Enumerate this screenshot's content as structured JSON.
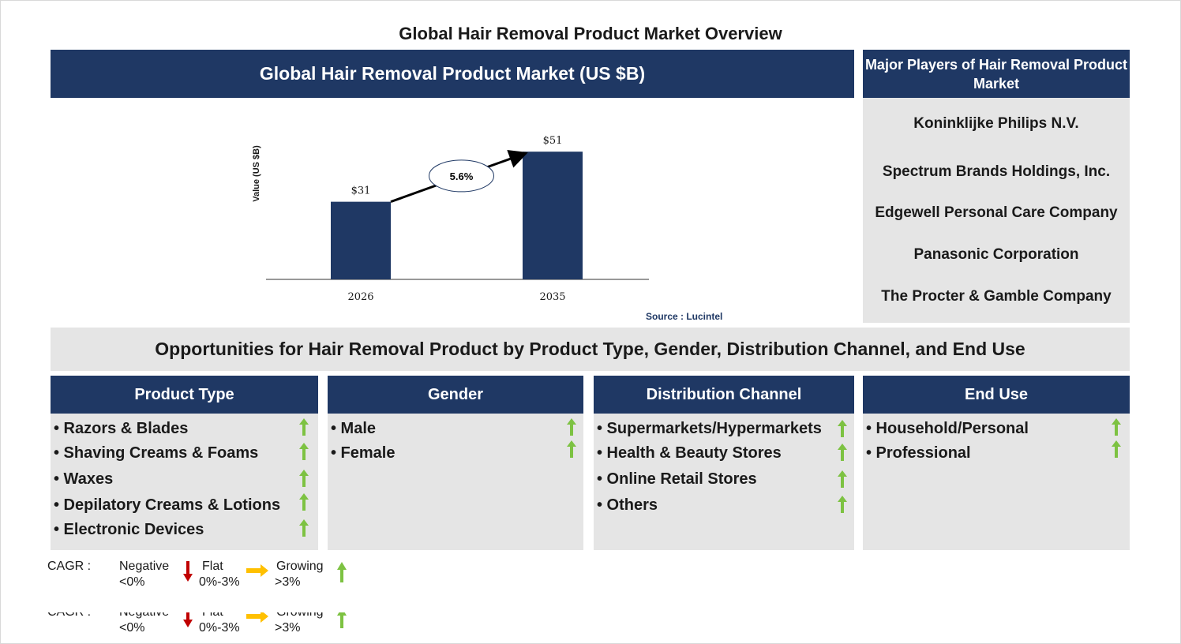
{
  "title": "Global Hair Removal Product Market Overview",
  "chart_header": "Global Hair Removal Product Market (US $B)",
  "players_header": "Major Players of Hair Removal Product Market",
  "players": [
    "Koninklijke Philips N.V.",
    "Spectrum Brands Holdings, Inc.",
    "Edgewell Personal Care Company",
    "Panasonic Corporation",
    "The Procter & Gamble Company"
  ],
  "chart_data": {
    "type": "bar",
    "categories": [
      "2026",
      "2035"
    ],
    "values": [
      31,
      51
    ],
    "value_labels": [
      "$31",
      "$51"
    ],
    "ylabel": "Value (US $B)",
    "ylim": [
      0,
      60
    ],
    "cagr_label": "5.6%",
    "bar_color": "#1f3864",
    "source": "Source : Lucintel"
  },
  "opportunities_title": "Opportunities for Hair Removal Product by Product Type, Gender, Distribution Channel, and End Use",
  "segments": [
    {
      "title": "Product Type",
      "items": [
        "• Razors & Blades",
        "• Shaving Creams & Foams",
        "• Waxes",
        "• Depilatory Creams & Lotions",
        "• Electronic Devices"
      ]
    },
    {
      "title": "Gender",
      "items": [
        "• Male",
        "• Female"
      ]
    },
    {
      "title": "Distribution Channel",
      "items": [
        "• Supermarkets/Hypermarkets",
        "• Health & Beauty Stores",
        "• Online Retail Stores",
        "• Others"
      ]
    },
    {
      "title": "End Use",
      "items": [
        "• Household/Personal",
        "• Professional"
      ]
    }
  ],
  "item_trend_icon": "green-up-arrow-icon",
  "legend": {
    "cagr_label": "CAGR :",
    "negative": "Negative",
    "negative_range": "<0%",
    "flat": "Flat",
    "flat_range": "0%-3%",
    "growing": "Growing",
    "growing_range": ">3%"
  },
  "colors": {
    "navy": "#1f3864",
    "panel_gray": "#e5e5e5",
    "growing": "#7dc242",
    "flat": "#ffc000",
    "negative": "#c00000"
  }
}
